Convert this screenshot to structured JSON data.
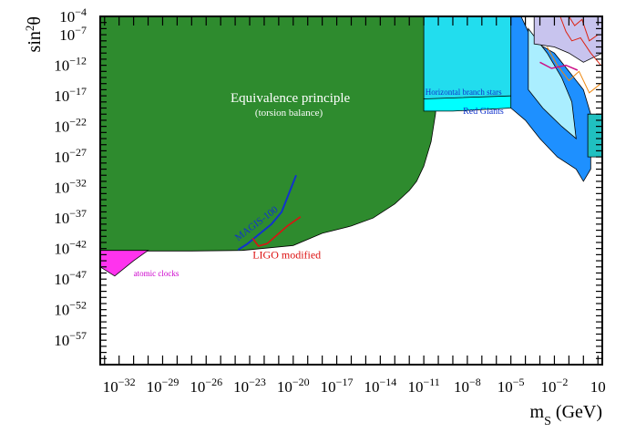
{
  "chart_data": {
    "type": "area",
    "xlabel": "m",
    "xlabel_sub": "S",
    "xlabel_unit": " (GeV)",
    "ylabel": "sin",
    "ylabel_sup": "2",
    "ylabel_theta": "θ",
    "x_scale": "log10",
    "y_scale": "log10",
    "xlim_log10": [
      -33.3,
      1.3
    ],
    "ylim_log10": [
      -61.0,
      -4.0
    ],
    "x_ticks": [
      {
        "mantissa": "10",
        "exponent": "−32",
        "log10": -32
      },
      {
        "mantissa": "10",
        "exponent": "−29",
        "log10": -29
      },
      {
        "mantissa": "10",
        "exponent": "−26",
        "log10": -26
      },
      {
        "mantissa": "10",
        "exponent": "−23",
        "log10": -23
      },
      {
        "mantissa": "10",
        "exponent": "−20",
        "log10": -20
      },
      {
        "mantissa": "10",
        "exponent": "−17",
        "log10": -17
      },
      {
        "mantissa": "10",
        "exponent": "−14",
        "log10": -14
      },
      {
        "mantissa": "10",
        "exponent": "−11",
        "log10": -11
      },
      {
        "mantissa": "10",
        "exponent": "−8",
        "log10": -8
      },
      {
        "mantissa": "10",
        "exponent": "−5",
        "log10": -5
      },
      {
        "mantissa": "10",
        "exponent": "−2",
        "log10": -2
      },
      {
        "mantissa": "10",
        "exponent": "",
        "log10": 1
      }
    ],
    "y_ticks": [
      {
        "mantissa": "10",
        "exponent": "−4",
        "log10": -4
      },
      {
        "mantissa": "10",
        "exponent": "−7",
        "log10": -7
      },
      {
        "mantissa": "10",
        "exponent": "−12",
        "log10": -12
      },
      {
        "mantissa": "10",
        "exponent": "−17",
        "log10": -17
      },
      {
        "mantissa": "10",
        "exponent": "−22",
        "log10": -22
      },
      {
        "mantissa": "10",
        "exponent": "−27",
        "log10": -27
      },
      {
        "mantissa": "10",
        "exponent": "−32",
        "log10": -32
      },
      {
        "mantissa": "10",
        "exponent": "−37",
        "log10": -37
      },
      {
        "mantissa": "10",
        "exponent": "−42",
        "log10": -42
      },
      {
        "mantissa": "10",
        "exponent": "−47",
        "log10": -47
      },
      {
        "mantissa": "10",
        "exponent": "−52",
        "log10": -52
      },
      {
        "mantissa": "10",
        "exponent": "−57",
        "log10": -57
      }
    ],
    "regions": [
      {
        "name": "equivalence-principle",
        "fill": "#2e8b2e",
        "opacity": 1,
        "points": [
          [
            -33.3,
            -4.0
          ],
          [
            -33.3,
            -42.3
          ],
          [
            -31.0,
            -42.4
          ],
          [
            -27.0,
            -42.4
          ],
          [
            -23.5,
            -42.3
          ],
          [
            -20.0,
            -41.5
          ],
          [
            -18.0,
            -39.5
          ],
          [
            -16.0,
            -38.3
          ],
          [
            -14.5,
            -37.0
          ],
          [
            -13.0,
            -34.7
          ],
          [
            -12.0,
            -32.5
          ],
          [
            -11.5,
            -31.0
          ],
          [
            -11.0,
            -28.5
          ],
          [
            -10.5,
            -24.5
          ],
          [
            -10.2,
            -20.0
          ],
          [
            -10.0,
            -14.0
          ],
          [
            -9.7,
            -8.0
          ],
          [
            -9.5,
            -5.5
          ],
          [
            -9.0,
            -4.0
          ]
        ]
      },
      {
        "name": "atomic-clocks",
        "fill": "#ff33ee",
        "opacity": 1,
        "points": [
          [
            -33.3,
            -42.3
          ],
          [
            -30.0,
            -42.3
          ],
          [
            -31.0,
            -44.0
          ],
          [
            -32.3,
            -46.5
          ],
          [
            -33.3,
            -45.0
          ]
        ]
      },
      {
        "name": "horizontal-branch-stars",
        "fill": "#22ddee",
        "opacity": 1,
        "points": [
          [
            -11.0,
            -4.0
          ],
          [
            -9.0,
            -4.0
          ],
          [
            -6.0,
            -4.0
          ],
          [
            -4.6,
            -4.0
          ],
          [
            -4.5,
            -12.0
          ],
          [
            -4.8,
            -17.0
          ],
          [
            -8.0,
            -17.5
          ],
          [
            -11.0,
            -17.5
          ]
        ]
      },
      {
        "name": "red-giants",
        "fill": "#00ffff",
        "opacity": 1,
        "points": [
          [
            -11.0,
            -17.5
          ],
          [
            -4.8,
            -17.0
          ],
          [
            -5.0,
            -19.0
          ],
          [
            -9.0,
            -19.5
          ],
          [
            -11.0,
            -19.5
          ]
        ]
      },
      {
        "name": "stellar-cooling-blue",
        "fill": "#1e90ff",
        "opacity": 1,
        "points": [
          [
            -5.0,
            -4.0
          ],
          [
            -4.3,
            -4.0
          ],
          [
            -3.5,
            -8.0
          ],
          [
            -2.0,
            -10.0
          ],
          [
            -1.0,
            -13.0
          ],
          [
            0.0,
            -16.0
          ],
          [
            0.5,
            -20.0
          ],
          [
            0.5,
            -29.0
          ],
          [
            0.0,
            -31.0
          ],
          [
            -0.5,
            -29.0
          ],
          [
            -1.8,
            -27.0
          ],
          [
            -3.0,
            -24.0
          ],
          [
            -4.0,
            -21.0
          ],
          [
            -5.0,
            -19.0
          ]
        ]
      },
      {
        "name": "stellar-cooling-light",
        "fill": "#aaeeff",
        "opacity": 1,
        "points": [
          [
            -3.8,
            -6.0
          ],
          [
            -2.5,
            -10.0
          ],
          [
            -1.5,
            -14.0
          ],
          [
            -0.8,
            -18.0
          ],
          [
            -0.5,
            -24.0
          ],
          [
            -1.5,
            -22.0
          ],
          [
            -2.8,
            -19.0
          ],
          [
            -3.8,
            -16.0
          ]
        ]
      },
      {
        "name": "collider-top-lavender",
        "fill": "#c8c4ee",
        "opacity": 1,
        "points": [
          [
            -3.4,
            -4.0
          ],
          [
            1.3,
            -4.0
          ],
          [
            1.3,
            -10.0
          ],
          [
            0.0,
            -11.5
          ],
          [
            -1.0,
            -10.0
          ],
          [
            -2.0,
            -9.0
          ],
          [
            -3.4,
            -8.5
          ]
        ]
      },
      {
        "name": "beam-dump-teal",
        "fill": "#20c0c0",
        "opacity": 1,
        "points": [
          [
            0.3,
            -20.0
          ],
          [
            1.3,
            -20.0
          ],
          [
            1.3,
            -27.0
          ],
          [
            0.3,
            -27.0
          ]
        ]
      }
    ],
    "lines": [
      {
        "name": "MAGIS-100",
        "color": "#1133cc",
        "width": 2,
        "points": [
          [
            -23.8,
            -42.2
          ],
          [
            -23.2,
            -41.3
          ],
          [
            -21.5,
            -38.0
          ],
          [
            -20.8,
            -36.0
          ],
          [
            -19.8,
            -30.0
          ]
        ]
      },
      {
        "name": "LIGO modified",
        "color": "#dd1111",
        "width": 1.6,
        "points": [
          [
            -22.8,
            -40.3
          ],
          [
            -22.4,
            -41.6
          ],
          [
            -21.8,
            -41.2
          ],
          [
            -20.4,
            -38.3
          ],
          [
            -19.5,
            -36.8
          ]
        ]
      },
      {
        "name": "collider-red-1",
        "color": "#dd2211",
        "width": 1,
        "points": [
          [
            -1.6,
            -4.0
          ],
          [
            -1.2,
            -6.5
          ],
          [
            -0.8,
            -8.0
          ],
          [
            -0.2,
            -7.5
          ],
          [
            0.5,
            -10.0
          ],
          [
            1.2,
            -12.0
          ]
        ]
      },
      {
        "name": "collider-red-2",
        "color": "#dd2211",
        "width": 1,
        "points": [
          [
            -1.0,
            -4.0
          ],
          [
            -0.6,
            -5.5
          ],
          [
            -0.1,
            -4.5
          ],
          [
            0.4,
            -8.0
          ],
          [
            1.0,
            -7.0
          ]
        ]
      },
      {
        "name": "collider-orange",
        "color": "#ee8811",
        "width": 1,
        "points": [
          [
            -2.5,
            -9.0
          ],
          [
            -1.8,
            -12.0
          ],
          [
            -1.0,
            -14.5
          ],
          [
            -0.3,
            -13.0
          ],
          [
            0.4,
            -16.5
          ],
          [
            1.2,
            -15.0
          ]
        ]
      },
      {
        "name": "collider-magenta",
        "color": "#cc1188",
        "width": 1.5,
        "points": [
          [
            -3.0,
            -11.5
          ],
          [
            -2.2,
            -12.5
          ],
          [
            -1.2,
            -12.0
          ],
          [
            -0.4,
            -12.8
          ]
        ]
      }
    ],
    "annotations": [
      {
        "text": "Equivalence principle",
        "color": "#ffffff",
        "x_log10": -20.2,
        "y_log10": -18.0,
        "size": 15,
        "anchor": "middle",
        "rotate": 0
      },
      {
        "text": "(torsion balance)",
        "color": "#ffffff",
        "x_log10": -20.3,
        "y_log10": -20.3,
        "size": 11,
        "anchor": "middle",
        "rotate": 0
      },
      {
        "text": "Horizontal branch stars",
        "color": "#1133cc",
        "x_log10": -10.9,
        "y_log10": -16.8,
        "size": 9,
        "anchor": "start",
        "rotate": 0
      },
      {
        "text": "Red Giants",
        "color": "#1133cc",
        "x_log10": -8.3,
        "y_log10": -20.0,
        "size": 10,
        "anchor": "start",
        "rotate": 0
      },
      {
        "text": "MAGIS-100",
        "color": "#1133cc",
        "x_log10": -23.8,
        "y_log10": -40.8,
        "size": 11,
        "anchor": "start",
        "rotate": -37
      },
      {
        "text": "LIGO modified",
        "color": "#dd1111",
        "x_log10": -22.8,
        "y_log10": -43.6,
        "size": 12,
        "anchor": "start",
        "rotate": 0
      },
      {
        "text": "atomic clocks",
        "color": "#cc00cc",
        "x_log10": -31.0,
        "y_log10": -46.5,
        "size": 9,
        "anchor": "start",
        "rotate": 0
      }
    ]
  }
}
